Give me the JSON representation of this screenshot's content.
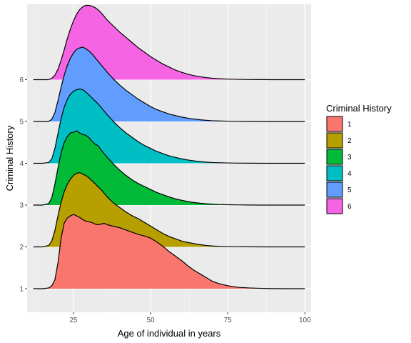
{
  "chart_data": {
    "type": "area",
    "subtype": "ridgeline",
    "xlabel": "Age of individual in years",
    "ylabel": "Criminal History",
    "x_ticks": [
      25,
      50,
      75,
      100
    ],
    "xlim": [
      10,
      102
    ],
    "categories": [
      "1",
      "2",
      "3",
      "4",
      "5",
      "6"
    ],
    "legend": {
      "title": "Criminal History",
      "placement": "right"
    },
    "grid": true,
    "x": [
      12,
      15,
      17,
      18,
      19,
      20,
      21,
      22,
      23,
      24,
      25,
      26,
      27,
      28,
      29,
      30,
      31,
      32,
      33,
      34,
      35,
      36,
      38,
      40,
      42,
      44,
      46,
      48,
      50,
      52,
      54,
      56,
      58,
      60,
      62,
      64,
      66,
      68,
      70,
      72,
      75,
      78,
      82,
      86,
      90,
      95,
      100
    ],
    "series": [
      {
        "name": "1",
        "color": "#F8766D",
        "values": [
          0,
          0,
          0.01,
          0.04,
          0.12,
          0.35,
          0.68,
          0.88,
          0.95,
          0.98,
          1.0,
          0.98,
          0.96,
          0.93,
          0.91,
          0.9,
          0.89,
          0.87,
          0.86,
          0.87,
          0.88,
          0.86,
          0.84,
          0.82,
          0.79,
          0.76,
          0.73,
          0.71,
          0.68,
          0.63,
          0.57,
          0.5,
          0.44,
          0.38,
          0.31,
          0.25,
          0.2,
          0.15,
          0.1,
          0.07,
          0.04,
          0.02,
          0.01,
          0.004,
          0.001,
          0,
          0
        ]
      },
      {
        "name": "2",
        "color": "#B79F00",
        "values": [
          0,
          0,
          0.02,
          0.08,
          0.22,
          0.42,
          0.6,
          0.74,
          0.84,
          0.91,
          0.96,
          0.99,
          1.0,
          0.98,
          0.96,
          0.93,
          0.89,
          0.85,
          0.81,
          0.77,
          0.72,
          0.67,
          0.59,
          0.53,
          0.47,
          0.42,
          0.38,
          0.33,
          0.28,
          0.23,
          0.18,
          0.14,
          0.11,
          0.08,
          0.06,
          0.045,
          0.03,
          0.02,
          0.012,
          0.007,
          0.004,
          0.002,
          0.001,
          0,
          0,
          0,
          0
        ]
      },
      {
        "name": "3",
        "color": "#00BA38",
        "values": [
          0,
          0,
          0.02,
          0.1,
          0.28,
          0.5,
          0.7,
          0.84,
          0.92,
          0.97,
          0.98,
          1.0,
          0.97,
          0.95,
          0.94,
          0.91,
          0.86,
          0.82,
          0.8,
          0.74,
          0.69,
          0.64,
          0.55,
          0.47,
          0.4,
          0.34,
          0.29,
          0.25,
          0.21,
          0.17,
          0.14,
          0.11,
          0.085,
          0.065,
          0.048,
          0.035,
          0.025,
          0.018,
          0.012,
          0.008,
          0.005,
          0.003,
          0.001,
          0,
          0,
          0,
          0
        ]
      },
      {
        "name": "4",
        "color": "#00BFC4",
        "values": [
          0,
          0,
          0.01,
          0.06,
          0.2,
          0.4,
          0.6,
          0.75,
          0.86,
          0.93,
          0.97,
          0.99,
          1.0,
          0.99,
          0.96,
          0.92,
          0.88,
          0.84,
          0.8,
          0.75,
          0.7,
          0.65,
          0.56,
          0.48,
          0.41,
          0.35,
          0.29,
          0.24,
          0.2,
          0.16,
          0.13,
          0.1,
          0.08,
          0.06,
          0.045,
          0.033,
          0.023,
          0.016,
          0.01,
          0.007,
          0.004,
          0.002,
          0.001,
          0,
          0,
          0,
          0
        ]
      },
      {
        "name": "5",
        "color": "#619CFF",
        "values": [
          0,
          0,
          0,
          0.03,
          0.12,
          0.28,
          0.46,
          0.62,
          0.75,
          0.85,
          0.92,
          0.97,
          0.99,
          1.0,
          0.98,
          0.95,
          0.91,
          0.86,
          0.81,
          0.76,
          0.71,
          0.66,
          0.57,
          0.49,
          0.42,
          0.36,
          0.3,
          0.25,
          0.2,
          0.16,
          0.13,
          0.1,
          0.08,
          0.06,
          0.045,
          0.033,
          0.023,
          0.016,
          0.01,
          0.007,
          0.004,
          0.002,
          0.001,
          0,
          0,
          0,
          0
        ]
      },
      {
        "name": "6",
        "color": "#F564E3",
        "values": [
          0,
          0,
          0,
          0.02,
          0.06,
          0.14,
          0.26,
          0.4,
          0.55,
          0.68,
          0.79,
          0.88,
          0.94,
          0.98,
          1.0,
          1.0,
          0.99,
          0.97,
          0.94,
          0.9,
          0.85,
          0.8,
          0.72,
          0.64,
          0.57,
          0.5,
          0.43,
          0.37,
          0.31,
          0.26,
          0.21,
          0.17,
          0.13,
          0.1,
          0.075,
          0.055,
          0.04,
          0.028,
          0.019,
          0.013,
          0.008,
          0.004,
          0.002,
          0.001,
          0,
          0,
          0
        ]
      }
    ]
  }
}
